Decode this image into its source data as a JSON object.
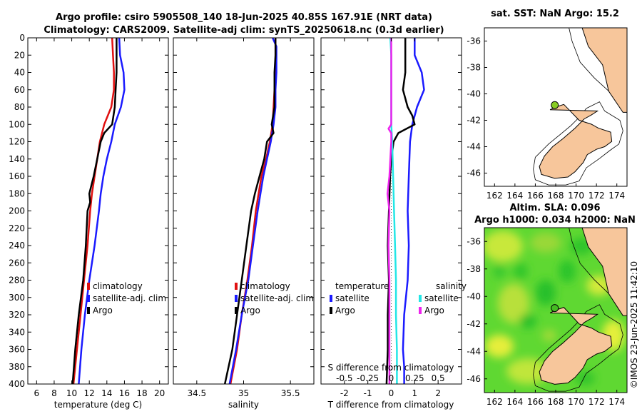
{
  "title": {
    "line1": "Argo profile: csiro 5905508_140 18-Jun-2025 40.85S 167.91E (NRT data)",
    "line2": "Climatology: CARS2009. Satellite-adj clim: synTS_20250618.nc (0.3d earlier)"
  },
  "colors": {
    "climatology": "#e01010",
    "satellite": "#1a1aff",
    "argo": "#000000",
    "sat_salinity": "#22e6e6",
    "argo_salinity": "#ee22ee",
    "land": "#f7c69b"
  },
  "depth_axis": {
    "ylim": [
      0,
      400
    ],
    "ticks": [
      "0",
      "20",
      "40",
      "60",
      "80",
      "100",
      "120",
      "140",
      "160",
      "180",
      "200",
      "220",
      "240",
      "260",
      "280",
      "300",
      "320",
      "340",
      "360",
      "380",
      "400"
    ]
  },
  "chart_data": [
    {
      "type": "line",
      "id": "temperature",
      "xlabel": "temperature (deg C)",
      "xlim": [
        5,
        21
      ],
      "xticks": [
        6,
        8,
        10,
        12,
        14,
        16,
        18,
        20
      ],
      "xtick_labels": [
        "6",
        "8",
        "10",
        "12",
        "14",
        "16",
        "18",
        "20"
      ],
      "y_key": "depth",
      "series": [
        {
          "name": "climatology",
          "color_key": "climatology",
          "depth": [
            0,
            20,
            40,
            60,
            80,
            100,
            120,
            140,
            160,
            180,
            200,
            240,
            280,
            320,
            360,
            400
          ],
          "values": [
            14.6,
            14.7,
            14.8,
            14.8,
            14.5,
            13.7,
            13.2,
            12.9,
            12.6,
            12.3,
            12.1,
            11.8,
            11.4,
            11.0,
            10.6,
            10.2
          ]
        },
        {
          "name": "satellite-adj. clim",
          "color_key": "satellite",
          "depth": [
            0,
            20,
            40,
            60,
            80,
            100,
            120,
            140,
            160,
            180,
            200,
            240,
            280,
            320,
            360,
            400
          ],
          "values": [
            15.4,
            15.5,
            15.9,
            16.0,
            15.6,
            14.9,
            14.5,
            14.0,
            13.6,
            13.3,
            13.1,
            12.6,
            12.0,
            11.5,
            11.1,
            10.8
          ]
        },
        {
          "name": "Argo",
          "color_key": "argo",
          "depth": [
            0,
            20,
            40,
            60,
            80,
            100,
            110,
            120,
            140,
            160,
            180,
            190,
            200,
            240,
            280,
            320,
            360,
            400
          ],
          "values": [
            15.1,
            15.1,
            15.1,
            15.0,
            14.9,
            14.6,
            13.7,
            13.3,
            12.9,
            12.5,
            12.0,
            12.1,
            11.8,
            11.6,
            11.3,
            10.8,
            10.4,
            10.1
          ]
        }
      ],
      "legend": {
        "position": "center-right",
        "entries": [
          "climatology",
          "satellite-adj. clim",
          "Argo"
        ]
      }
    },
    {
      "type": "line",
      "id": "salinity",
      "xlabel": "salinity",
      "xlim": [
        34.25,
        35.75
      ],
      "xticks": [
        34.5,
        35,
        35.5
      ],
      "xtick_labels": [
        "34.5",
        "35",
        "35.5"
      ],
      "y_key": "depth",
      "series": [
        {
          "name": "climatology",
          "color_key": "climatology",
          "depth": [
            0,
            20,
            40,
            60,
            80,
            100,
            120,
            140,
            160,
            180,
            200,
            240,
            280,
            320,
            360,
            400
          ],
          "values": [
            35.34,
            35.34,
            35.34,
            35.33,
            35.32,
            35.31,
            35.28,
            35.24,
            35.19,
            35.16,
            35.13,
            35.09,
            35.04,
            34.98,
            34.93,
            34.86
          ]
        },
        {
          "name": "satellite-adj. clim",
          "color_key": "satellite",
          "depth": [
            0,
            10,
            20,
            40,
            60,
            80,
            100,
            120,
            140,
            160,
            180,
            200,
            240,
            280,
            320,
            360,
            400
          ],
          "values": [
            35.31,
            35.35,
            35.35,
            35.35,
            35.34,
            35.34,
            35.32,
            35.29,
            35.25,
            35.21,
            35.18,
            35.15,
            35.1,
            35.05,
            34.98,
            34.92,
            34.85
          ]
        },
        {
          "name": "Argo",
          "color_key": "argo",
          "depth": [
            0,
            20,
            40,
            60,
            80,
            100,
            110,
            120,
            140,
            160,
            180,
            200,
            240,
            280,
            320,
            360,
            400
          ],
          "values": [
            35.34,
            35.34,
            35.33,
            35.33,
            35.33,
            35.3,
            35.32,
            35.25,
            35.22,
            35.17,
            35.12,
            35.08,
            35.03,
            34.98,
            34.93,
            34.88,
            34.8
          ]
        }
      ],
      "legend": {
        "position": "center-right",
        "entries": [
          "climatology",
          "satellite-adj. clim",
          "Argo"
        ]
      }
    },
    {
      "type": "line",
      "id": "differences",
      "xlabel": "T difference from climatology",
      "xlim": [
        -3,
        3
      ],
      "xticks": [
        -2,
        -1,
        0,
        1,
        2
      ],
      "xtick_labels": [
        "-2",
        "-1",
        "0",
        "1",
        "2"
      ],
      "secondary_xlabel": "S difference from climatology",
      "secondary_xticks": [
        -0.5,
        -0.25,
        0,
        0.25,
        0.5
      ],
      "secondary_xtick_labels": [
        "-0.5",
        "-0.25",
        "0",
        "0.25",
        "0.5"
      ],
      "secondary_scale": 0.25,
      "y_key": "depth",
      "series": [
        {
          "name": "temperature satellite",
          "color_key": "satellite",
          "axis": "T",
          "depth": [
            0,
            20,
            40,
            60,
            80,
            100,
            120,
            160,
            200,
            240,
            280,
            320,
            360,
            380,
            400
          ],
          "values": [
            1.0,
            1.0,
            1.3,
            1.4,
            1.1,
            0.9,
            0.8,
            0.75,
            0.7,
            0.75,
            0.7,
            0.55,
            0.5,
            0.55,
            0.55
          ]
        },
        {
          "name": "temperature Argo",
          "color_key": "argo",
          "axis": "T",
          "depth": [
            0,
            20,
            40,
            60,
            80,
            90,
            100,
            110,
            120,
            140,
            160,
            200,
            240,
            280,
            320,
            360,
            400
          ],
          "values": [
            0.6,
            0.6,
            0.6,
            0.5,
            0.7,
            0.9,
            1.0,
            0.3,
            0.1,
            0.0,
            -0.05,
            -0.1,
            -0.15,
            -0.1,
            -0.15,
            -0.15,
            -0.2
          ]
        },
        {
          "name": "salinity satellite",
          "color_key": "sat_salinity",
          "axis": "S",
          "depth": [
            0,
            20,
            40,
            60,
            80,
            100,
            120,
            160,
            200,
            240,
            280,
            320,
            360,
            400
          ],
          "values": [
            -0.01,
            0.0,
            0.0,
            0.0,
            0.0,
            0.0,
            0.01,
            0.02,
            0.03,
            0.04,
            0.05,
            0.05,
            0.06,
            0.06
          ]
        },
        {
          "name": "salinity Argo",
          "color_key": "argo_salinity",
          "axis": "S",
          "depth": [
            0,
            20,
            40,
            60,
            80,
            100,
            105,
            110,
            120,
            160,
            180,
            200,
            240,
            280,
            320,
            360,
            400
          ],
          "values": [
            0.0,
            0.0,
            0.0,
            0.0,
            0.0,
            0.0,
            -0.03,
            0.0,
            0.0,
            -0.02,
            -0.04,
            -0.02,
            -0.03,
            -0.02,
            -0.02,
            -0.02,
            -0.02
          ]
        }
      ],
      "legend": {
        "position": "center",
        "temperature_title": "temperature",
        "salinity_title": "salinity",
        "temperature_entries": [
          "satellite",
          "Argo"
        ],
        "salinity_entries": [
          "satellite",
          "Argo"
        ]
      }
    },
    {
      "type": "map",
      "id": "sst_map",
      "title": "sat. SST: NaN Argo: 15.2",
      "lon_range": [
        161,
        175
      ],
      "lat_range": [
        -47,
        -35
      ],
      "lon_ticks": [
        "162",
        "164",
        "166",
        "168",
        "170",
        "172",
        "174"
      ],
      "lat_ticks": [
        "-36",
        "-38",
        "-40",
        "-42",
        "-44",
        "-46"
      ],
      "marker": {
        "lon": 167.91,
        "lat": -40.85,
        "color": "#88cc22"
      }
    },
    {
      "type": "map",
      "id": "sla_map",
      "title_line1": "Altim. SLA: 0.096",
      "title_line2": "Argo h1000: 0.034 h2000: NaN",
      "lon_range": [
        161,
        175
      ],
      "lat_range": [
        -47,
        -35
      ],
      "lon_ticks": [
        "162",
        "164",
        "166",
        "168",
        "170",
        "172",
        "174"
      ],
      "lat_ticks": [
        "-36",
        "-38",
        "-40",
        "-42",
        "-44",
        "-46"
      ],
      "marker": {
        "lon": 167.91,
        "lat": -40.85,
        "color": "#44bb22"
      }
    }
  ],
  "copyright": "©IMOS 23-Jun-2025 11:42:10"
}
